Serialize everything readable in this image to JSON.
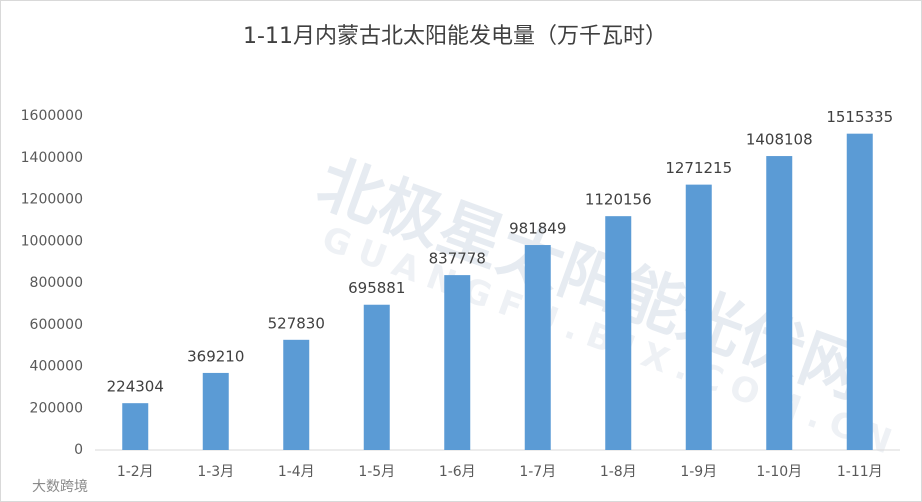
{
  "chart_data": {
    "type": "bar",
    "title": "1-11月内蒙古北太阳能发电量（万千瓦时）",
    "categories": [
      "1-2月",
      "1-3月",
      "1-4月",
      "1-5月",
      "1-6月",
      "1-7月",
      "1-8月",
      "1-9月",
      "1-10月",
      "1-11月"
    ],
    "values": [
      224304,
      369210,
      527830,
      695881,
      837778,
      981849,
      1120156,
      1271215,
      1408108,
      1515335
    ],
    "color": "#5b9bd5",
    "ylim": [
      0,
      1600000
    ],
    "yticks": [
      0,
      200000,
      400000,
      600000,
      800000,
      1000000,
      1200000,
      1400000,
      1600000
    ],
    "grid": false,
    "watermarks": [
      "北极星太阳能光伏网",
      "GUANGFU.BJX.COM.CN",
      "大数跨境"
    ]
  }
}
